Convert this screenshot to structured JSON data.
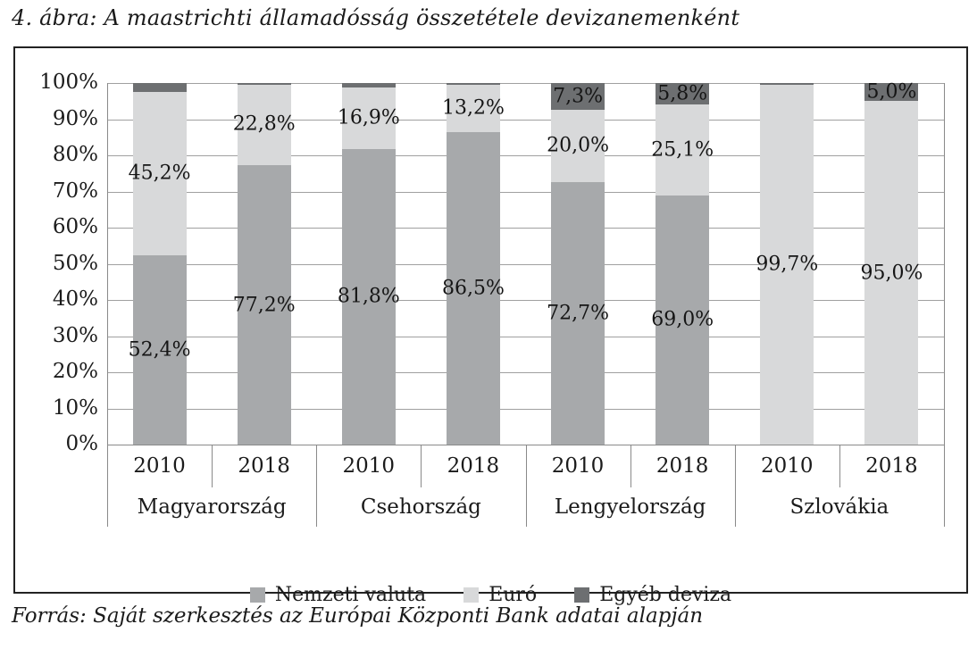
{
  "page": {
    "title": "4. ábra: A maastrichti államadósság összetétele devizanemenként",
    "source": "Forrás: Saját szerkesztés az Európai Központi Bank adatai alapján"
  },
  "colors": {
    "nemzeti_valuta": "#a7a9ab",
    "euro": "#d8d9da",
    "egyeb_deviza": "#6d6f71",
    "gridline": "#a0a0a0",
    "axis": "#8a8a8a",
    "frame_border": "#222222",
    "text": "#1b1b1b"
  },
  "chart_data": {
    "type": "bar",
    "stacked": true,
    "percent_scale": true,
    "ylim": [
      0,
      100
    ],
    "ytick_labels": [
      "0%",
      "10%",
      "20%",
      "30%",
      "40%",
      "50%",
      "60%",
      "70%",
      "80%",
      "90%",
      "100%"
    ],
    "grid": true,
    "legend_position": "bottom",
    "legend": [
      {
        "key": "Nemzeti valuta",
        "label": "Nemzeti valuta"
      },
      {
        "key": "Euró",
        "label": "Euró"
      },
      {
        "key": "Egyéb deviza",
        "label": "Egyéb deviza"
      }
    ],
    "stack_order_bottom_to_top": [
      "Nemzeti valuta",
      "Euró",
      "Egyéb deviza"
    ],
    "groups": [
      {
        "label": "Magyarország",
        "bars": [
          {
            "label": "2010",
            "values": {
              "Nemzeti valuta": 52.4,
              "Euró": 45.2,
              "Egyéb deviza": 2.4
            },
            "data_labels": {
              "Nemzeti valuta": "52,4%",
              "Euró": "45,2%"
            }
          },
          {
            "label": "2018",
            "values": {
              "Nemzeti valuta": 77.2,
              "Euró": 22.8,
              "Egyéb deviza": 0.0
            },
            "data_labels": {
              "Nemzeti valuta": "77,2%",
              "Euró": "22,8%"
            }
          }
        ]
      },
      {
        "label": "Csehország",
        "bars": [
          {
            "label": "2010",
            "values": {
              "Nemzeti valuta": 81.8,
              "Euró": 16.9,
              "Egyéb deviza": 1.3
            },
            "data_labels": {
              "Nemzeti valuta": "81,8%",
              "Euró": "16,9%"
            }
          },
          {
            "label": "2018",
            "values": {
              "Nemzeti valuta": 86.5,
              "Euró": 13.2,
              "Egyéb deviza": 0.3
            },
            "data_labels": {
              "Nemzeti valuta": "86,5%",
              "Euró": "13,2%"
            }
          }
        ]
      },
      {
        "label": "Lengyelország",
        "bars": [
          {
            "label": "2010",
            "values": {
              "Nemzeti valuta": 72.7,
              "Euró": 20.0,
              "Egyéb deviza": 7.3
            },
            "data_labels": {
              "Nemzeti valuta": "72,7%",
              "Euró": "20,0%",
              "Egyéb deviza": "7,3%"
            }
          },
          {
            "label": "2018",
            "values": {
              "Nemzeti valuta": 69.0,
              "Euró": 25.1,
              "Egyéb deviza": 5.8
            },
            "data_labels": {
              "Nemzeti valuta": "69,0%",
              "Euró": "25,1%",
              "Egyéb deviza": "5,8%"
            }
          }
        ]
      },
      {
        "label": "Szlovákia",
        "bars": [
          {
            "label": "2010",
            "values": {
              "Nemzeti valuta": 0.0,
              "Euró": 99.7,
              "Egyéb deviza": 0.3
            },
            "data_labels": {
              "Euró": "99,7%"
            }
          },
          {
            "label": "2018",
            "values": {
              "Nemzeti valuta": 0.0,
              "Euró": 95.0,
              "Egyéb deviza": 5.0
            },
            "data_labels": {
              "Euró": "95,0%",
              "Egyéb deviza": "5,0%"
            }
          }
        ]
      }
    ]
  }
}
